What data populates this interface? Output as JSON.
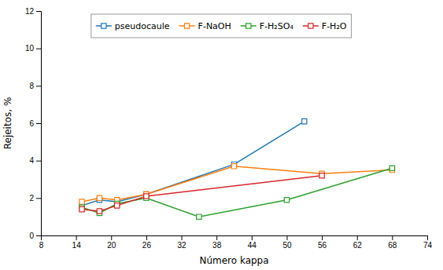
{
  "chart_data": {
    "type": "line",
    "xlabel": "Número kappa",
    "ylabel": "Rejeitos, %",
    "series": [
      {
        "name": "pseudocaule",
        "x": [
          15,
          18,
          21,
          26,
          41,
          53
        ],
        "values": [
          1.6,
          1.9,
          1.8,
          2.2,
          3.8,
          6.1
        ]
      },
      {
        "name": "F-NaOH",
        "x": [
          15,
          18,
          21,
          26,
          41,
          56,
          68
        ],
        "values": [
          1.8,
          2.0,
          1.9,
          2.2,
          3.7,
          3.3,
          3.5
        ]
      },
      {
        "name": "F-H₂SO₄",
        "x": [
          15,
          18,
          21,
          26,
          35,
          50,
          68
        ],
        "values": [
          1.5,
          1.2,
          1.7,
          2.0,
          1.0,
          1.9,
          3.6
        ]
      },
      {
        "name": "F-H₂O",
        "x": [
          15,
          18,
          21,
          26,
          56
        ],
        "values": [
          1.4,
          1.3,
          1.6,
          2.1,
          3.2
        ]
      }
    ],
    "marker": "square",
    "xlim": [
      8,
      74
    ],
    "ylim": [
      0,
      12
    ],
    "xticks": [
      8,
      14,
      20,
      26,
      32,
      38,
      44,
      50,
      56,
      62,
      68,
      74
    ],
    "yticks": [
      0,
      2,
      4,
      6,
      8,
      10,
      12
    ],
    "grid": false,
    "legend": "upper left"
  }
}
